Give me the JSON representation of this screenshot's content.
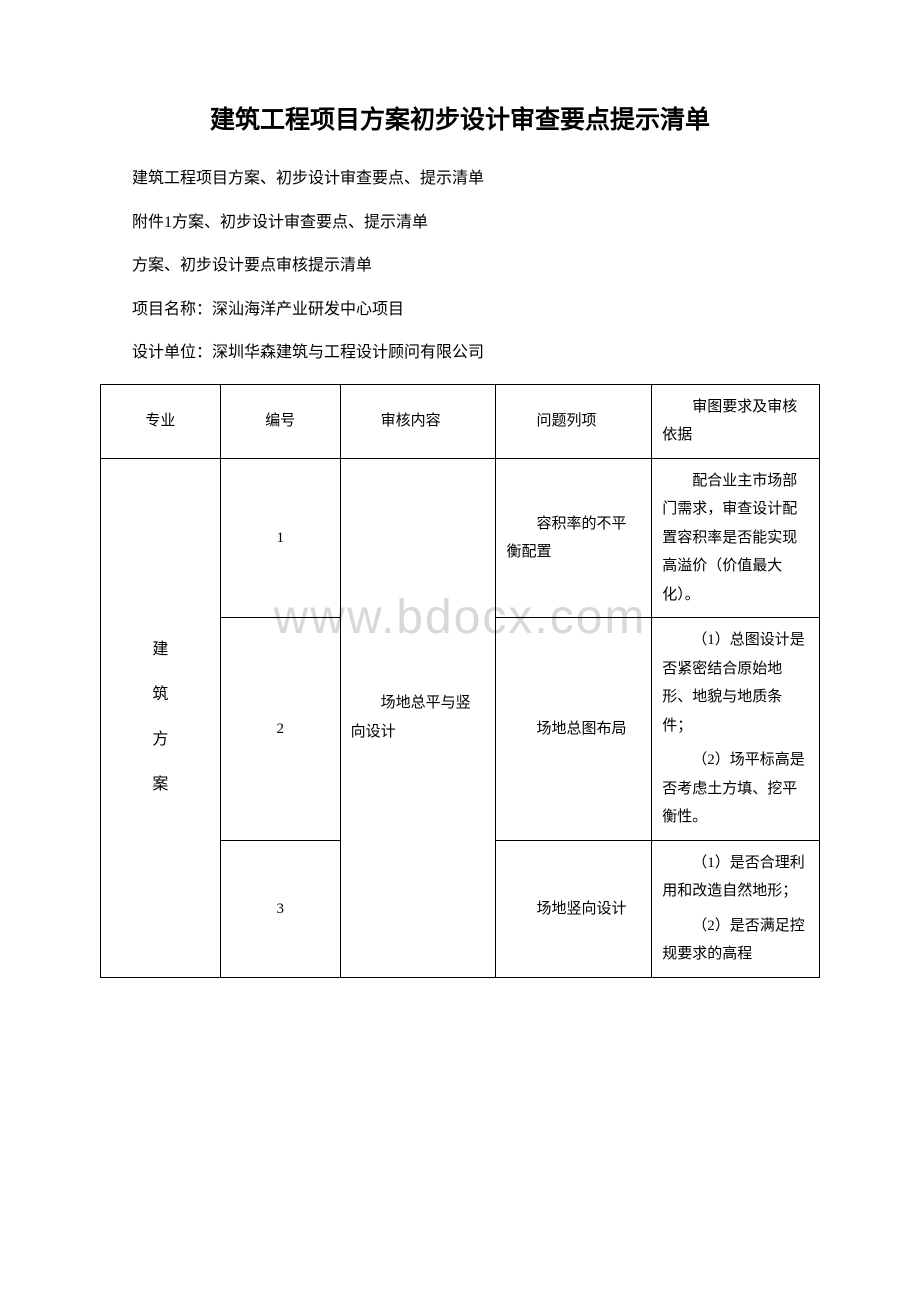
{
  "title": "建筑工程项目方案初步设计审查要点提示清单",
  "intro": [
    "建筑工程项目方案、初步设计审查要点、提示清单",
    "附件1方案、初步设计审查要点、提示清单",
    "方案、初步设计要点审核提示清单",
    "项目名称：深汕海洋产业研发中心项目",
    "设计单位：深圳华森建筑与工程设计顾问有限公司"
  ],
  "watermark": "www.bdocx.com",
  "table": {
    "headers": {
      "major": "专业",
      "num": "编号",
      "content": "审核内容",
      "issue": "问题列项",
      "requirement": "审图要求及审核依据"
    },
    "major_label": "建\n筑\n方\n案",
    "content_group": "场地总平与竖向设计",
    "rows": [
      {
        "num": "1",
        "issue": "容积率的不平衡配置",
        "requirements": [
          "配合业主市场部门需求，审查设计配置容积率是否能实现高溢价（价值最大化）。"
        ]
      },
      {
        "num": "2",
        "issue": "场地总图布局",
        "requirements": [
          "（1）总图设计是否紧密结合原始地形、地貌与地质条件；",
          "（2）场平标高是否考虑土方填、挖平衡性。"
        ]
      },
      {
        "num": "3",
        "issue": "场地竖向设计",
        "requirements": [
          "（1）是否合理利用和改造自然地形；",
          "（2）是否满足控规要求的高程"
        ]
      }
    ]
  }
}
